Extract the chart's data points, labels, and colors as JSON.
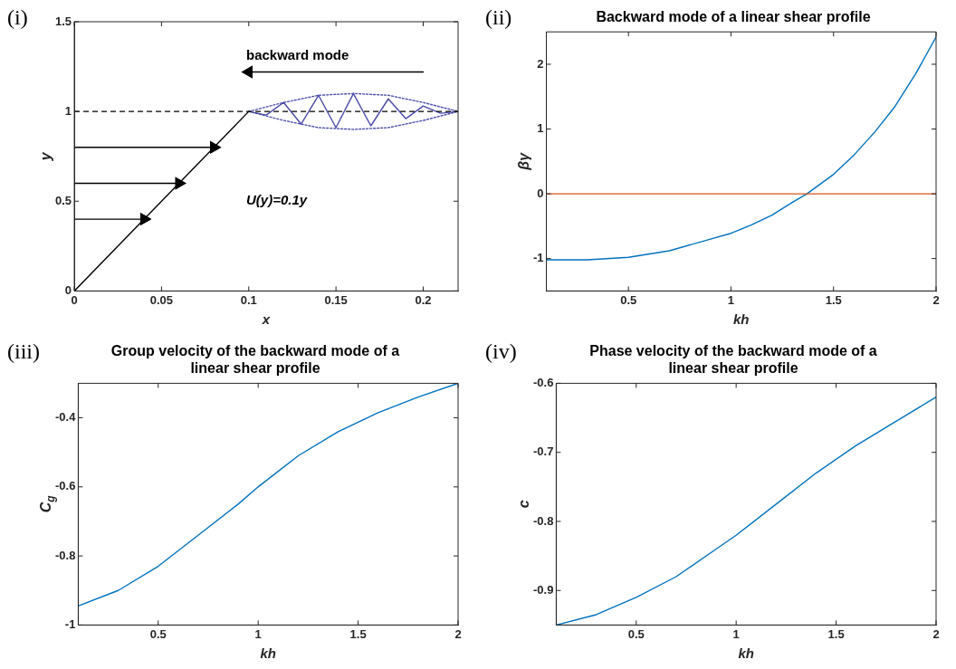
{
  "chart_data": [
    {
      "type": "line",
      "xlabel": "x",
      "ylabel": "y",
      "xlim": [
        0,
        0.22
      ],
      "xticks": [
        0,
        0.05,
        0.1,
        0.15,
        0.2
      ],
      "ylim": [
        0,
        1.5
      ],
      "yticks": [
        0,
        0.5,
        1,
        1.5
      ],
      "annotations": [
        "(i)",
        "backward mode",
        "U(y)=0.1y"
      ],
      "ref_lines": [
        {
          "axis": "y",
          "value": 1,
          "color": "#000000",
          "line_style": "dashed"
        }
      ],
      "series": [
        {
          "color": "#000000",
          "x": [
            0,
            0.1
          ],
          "values": [
            0,
            1
          ]
        },
        {
          "color": "#000000",
          "x": [
            0,
            0.08
          ],
          "values": [
            0.8,
            0.8
          ],
          "marker": "triangle"
        },
        {
          "color": "#000000",
          "x": [
            0,
            0.06
          ],
          "values": [
            0.6,
            0.6
          ],
          "marker": "triangle"
        },
        {
          "color": "#000000",
          "x": [
            0,
            0.04
          ],
          "values": [
            0.4,
            0.4
          ],
          "marker": "triangle"
        },
        {
          "color": "#000000",
          "x": [
            0.2,
            0.1
          ],
          "values": [
            1.22,
            1.22
          ],
          "marker": "triangle"
        },
        {
          "color": "#4a4aa8",
          "x": [
            0.1,
            0.11,
            0.12,
            0.13,
            0.14,
            0.15,
            0.16,
            0.17,
            0.18,
            0.19,
            0.2,
            0.21,
            0.22
          ],
          "values": [
            1.0,
            0.98,
            1.05,
            0.93,
            1.09,
            0.91,
            1.1,
            0.92,
            1.07,
            0.96,
            1.03,
            0.99,
            1.0
          ]
        },
        {
          "color": "#5050b0",
          "line_style": "dotted",
          "x": [
            0.1,
            0.12,
            0.14,
            0.16,
            0.18,
            0.2,
            0.22
          ],
          "values": [
            1.0,
            1.05,
            1.09,
            1.1,
            1.09,
            1.05,
            1.0
          ]
        },
        {
          "color": "#5050b0",
          "line_style": "dotted",
          "x": [
            0.1,
            0.12,
            0.14,
            0.16,
            0.18,
            0.2,
            0.22
          ],
          "values": [
            1.0,
            0.95,
            0.91,
            0.9,
            0.91,
            0.95,
            1.0
          ]
        }
      ]
    },
    {
      "type": "line",
      "title": "Backward mode of a linear shear profile",
      "xlabel": "kh",
      "ylabel": "βγ",
      "xlim": [
        0.1,
        2
      ],
      "xticks": [
        0.5,
        1,
        1.5,
        2
      ],
      "ylim": [
        -1.5,
        2.5
      ],
      "yticks": [
        -1,
        0,
        1,
        2
      ],
      "annotations": [
        "(ii)"
      ],
      "ref_lines": [
        {
          "axis": "y",
          "value": 0,
          "color": "#d95319",
          "line_style": "solid"
        }
      ],
      "series": [
        {
          "color": "#0072bd",
          "x": [
            0.1,
            0.3,
            0.5,
            0.7,
            0.9,
            1.0,
            1.1,
            1.2,
            1.3,
            1.37,
            1.5,
            1.6,
            1.7,
            1.8,
            1.9,
            2.0
          ],
          "values": [
            -1.02,
            -1.02,
            -0.98,
            -0.88,
            -0.7,
            -0.61,
            -0.48,
            -0.33,
            -0.13,
            0,
            0.3,
            0.6,
            0.95,
            1.35,
            1.85,
            2.42
          ]
        }
      ]
    },
    {
      "type": "line",
      "title": "Group velocity of the backward mode of a linear shear profile",
      "xlabel": "kh",
      "ylabel": "C$_{g}$",
      "xlim": [
        0.1,
        2
      ],
      "xticks": [
        0.5,
        1,
        1.5,
        2
      ],
      "ylim": [
        -1,
        -0.3
      ],
      "yticks": [
        -1,
        -0.8,
        -0.6,
        -0.4
      ],
      "annotations": [
        "(iii)"
      ],
      "series": [
        {
          "color": "#0072bd",
          "x": [
            0.1,
            0.3,
            0.5,
            0.7,
            0.9,
            1.0,
            1.2,
            1.4,
            1.6,
            1.8,
            2.0
          ],
          "values": [
            -0.945,
            -0.9,
            -0.83,
            -0.74,
            -0.65,
            -0.6,
            -0.51,
            -0.44,
            -0.385,
            -0.34,
            -0.3
          ]
        }
      ]
    },
    {
      "type": "line",
      "title": "Phase velocity of the backward mode of a linear shear profile",
      "xlabel": "kh",
      "ylabel": "c",
      "xlim": [
        0.1,
        2
      ],
      "xticks": [
        0.5,
        1,
        1.5,
        2
      ],
      "ylim": [
        -0.95,
        -0.6
      ],
      "yticks": [
        -0.9,
        -0.8,
        -0.7,
        -0.6
      ],
      "annotations": [
        "(iv)"
      ],
      "series": [
        {
          "color": "#0072bd",
          "x": [
            0.1,
            0.3,
            0.5,
            0.7,
            0.9,
            1.0,
            1.2,
            1.4,
            1.6,
            1.8,
            2.0
          ],
          "values": [
            -0.95,
            -0.935,
            -0.91,
            -0.88,
            -0.84,
            -0.82,
            -0.775,
            -0.73,
            -0.69,
            -0.655,
            -0.62
          ]
        }
      ]
    }
  ]
}
